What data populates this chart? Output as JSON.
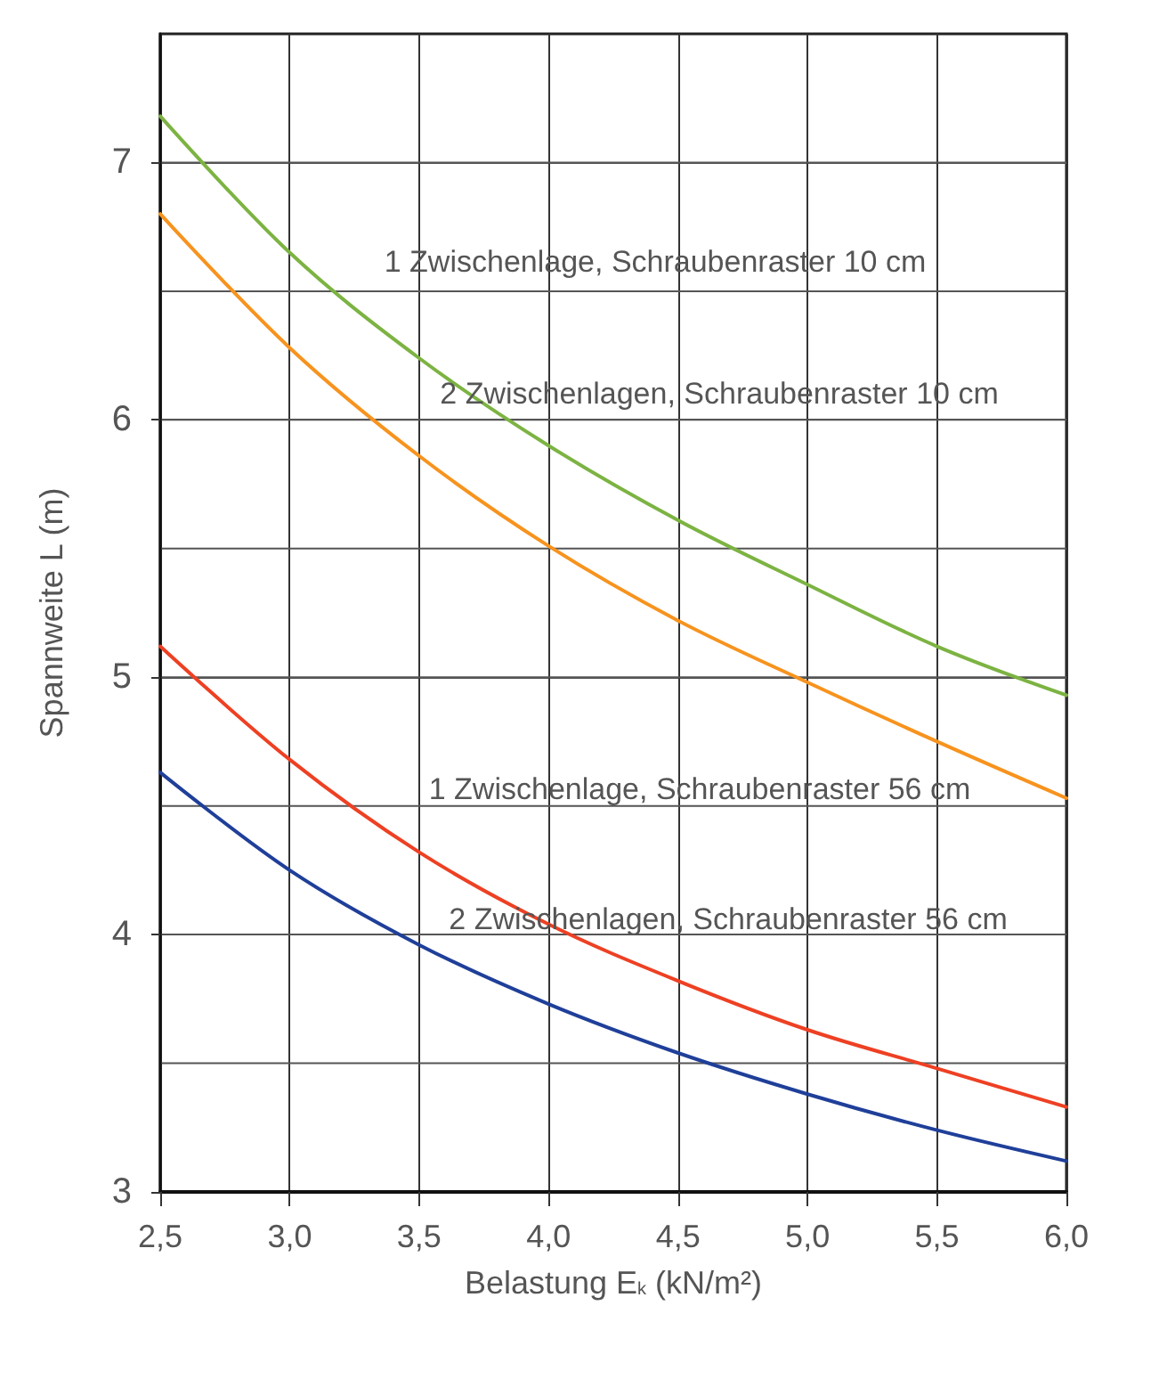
{
  "chart_data": {
    "type": "line",
    "xlabel": "Belastung E$_{k}$ (kN/m²)",
    "ylabel": "Spannweite L (m)",
    "x": [
      2.5,
      3.0,
      3.5,
      4.0,
      4.5,
      5.0,
      5.5,
      6.0
    ],
    "series": [
      {
        "color": "#7cb342",
        "values": [
          7.18,
          6.65,
          6.24,
          5.9,
          5.61,
          5.36,
          5.12,
          4.93
        ]
      },
      {
        "color": "#f7931e",
        "values": [
          6.8,
          6.28,
          5.86,
          5.51,
          5.22,
          4.98,
          4.75,
          4.53
        ]
      },
      {
        "color": "#ee4023",
        "values": [
          5.12,
          4.68,
          4.32,
          4.04,
          3.82,
          3.63,
          3.48,
          3.33
        ]
      },
      {
        "color": "#1f3f99",
        "values": [
          4.63,
          4.25,
          3.96,
          3.73,
          3.54,
          3.38,
          3.24,
          3.12
        ]
      }
    ],
    "annotations": [
      "1 Zwischenlage, Schraubenraster 10 cm",
      "2 Zwischenlagen, Schraubenraster 10 cm",
      "1 Zwischenlage, Schraubenraster 56 cm",
      "2 Zwischenlagen, Schraubenraster 56 cm"
    ],
    "xlim": [
      2.5,
      6.0
    ],
    "ylim": [
      3,
      7.5
    ],
    "xticks": [
      {
        "value": 2.5,
        "label": "2,5"
      },
      {
        "value": 3.0,
        "label": "3,0"
      },
      {
        "value": 3.5,
        "label": "3,5"
      },
      {
        "value": 4.0,
        "label": "4,0"
      },
      {
        "value": 4.5,
        "label": "4,5"
      },
      {
        "value": 5.0,
        "label": "5,0"
      },
      {
        "value": 5.5,
        "label": "5,5"
      },
      {
        "value": 6.0,
        "label": "6,0"
      }
    ],
    "yticks": [
      3,
      {
        "value": 3.5,
        "label": null
      },
      4,
      {
        "value": 4.5,
        "label": null
      },
      5,
      {
        "value": 5.5,
        "label": null
      },
      6,
      {
        "value": 6.5,
        "label": null
      },
      7
    ],
    "grid": true,
    "marker": "none",
    "line_style": "solid"
  }
}
